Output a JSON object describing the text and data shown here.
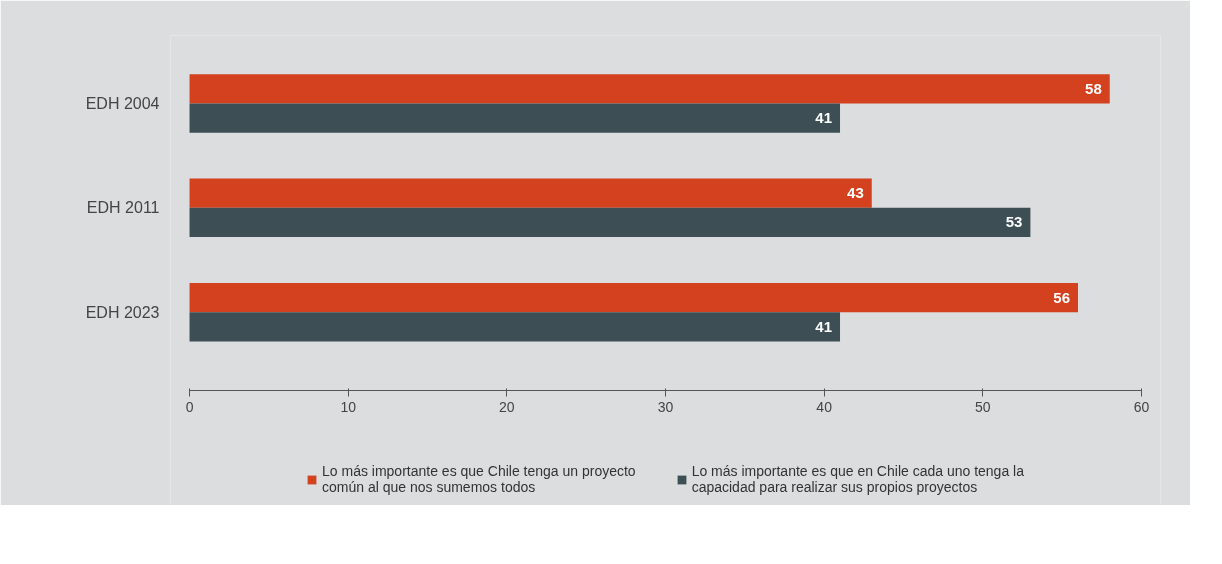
{
  "chart_data": {
    "type": "bar",
    "orientation": "horizontal",
    "categories": [
      "EDH 2004",
      "EDH 2011",
      "EDH 2023"
    ],
    "series": [
      {
        "name": "Lo más importante es que Chile tenga un proyecto común al que nos sumemos todos",
        "color": "#d4411e",
        "values": [
          58,
          43,
          56
        ]
      },
      {
        "name": "Lo más importante es que en Chile cada uno tenga la capacidad para realizar sus propios proyectos",
        "color": "#3d4f55",
        "values": [
          41,
          53,
          41
        ]
      }
    ],
    "xlim": [
      0,
      60
    ],
    "xticks": [
      0,
      10,
      20,
      30,
      40,
      50,
      60
    ],
    "data_labels": true,
    "grid": false,
    "legend": "bottom"
  }
}
